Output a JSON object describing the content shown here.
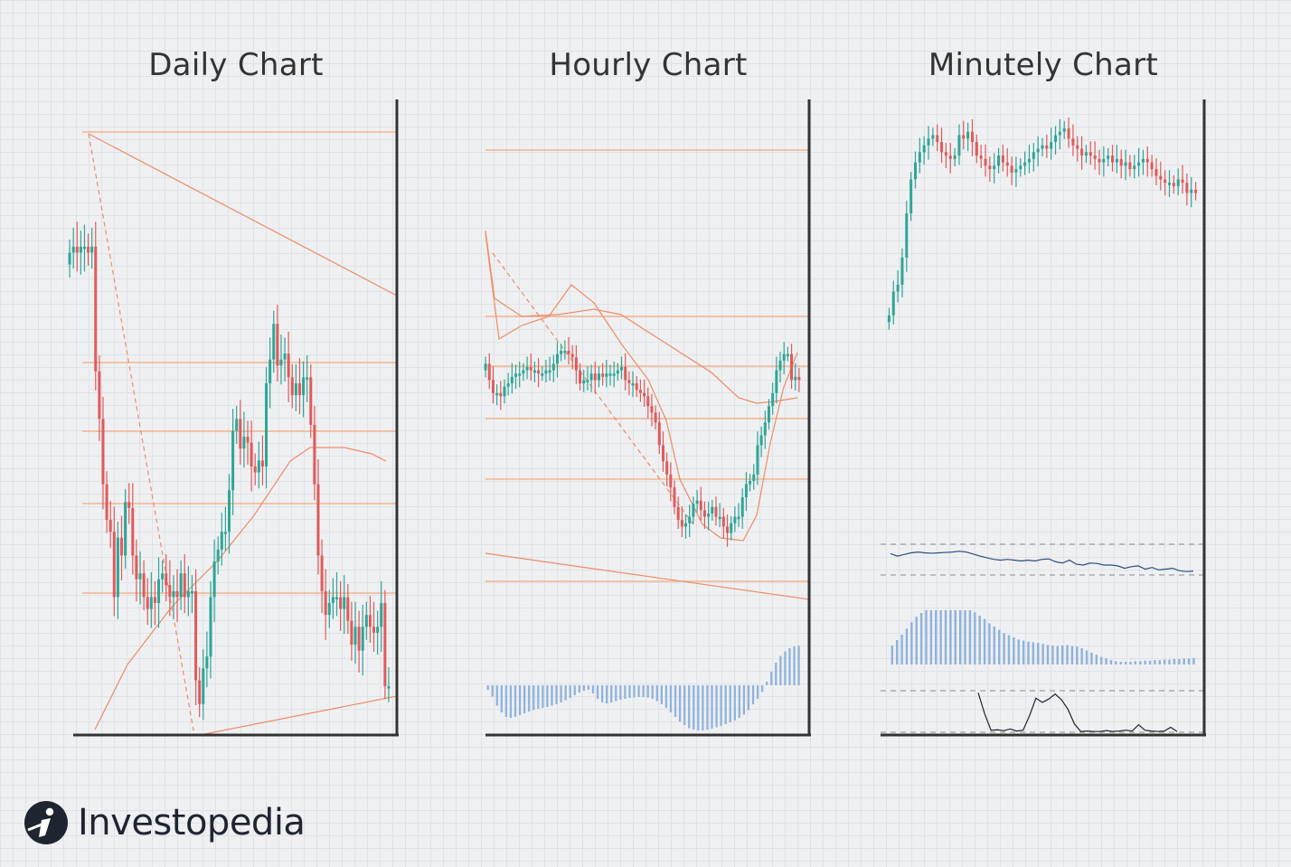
{
  "colors": {
    "up": "#2fa597",
    "down": "#e05a5a",
    "guide": "#f4a97c",
    "trend": "#ef8c66",
    "histogram": "#8fb2dc",
    "oscillator": "#2f4d7d",
    "axis": "#333333",
    "brand_dark": "#1f2530"
  },
  "titles": {
    "daily": "Daily Chart",
    "hourly": "Hourly Chart",
    "minutely": "Minutely Chart"
  },
  "brand": {
    "name": "Investopedia",
    "logo_icon": "investopedia-i-icon"
  },
  "chart_data": [
    {
      "type": "candlestick",
      "title": "Daily Chart",
      "ylim": [
        0,
        100
      ],
      "grid": true,
      "trendlines": true,
      "moving_average": true,
      "close": [
        80,
        81,
        80,
        81,
        81,
        80,
        81,
        60,
        52,
        41,
        35,
        33,
        22,
        32,
        29,
        38,
        37,
        29,
        25,
        26,
        22,
        20,
        22,
        21,
        25,
        26,
        24,
        22,
        23,
        22,
        26,
        22,
        23,
        23,
        8,
        4,
        10,
        12,
        22,
        28,
        30,
        33,
        33,
        40,
        50,
        52,
        47,
        49,
        48,
        44,
        43,
        45,
        44,
        58,
        62,
        68,
        61,
        62,
        63,
        59,
        56,
        58,
        56,
        59,
        59,
        51,
        41,
        29,
        23,
        19,
        21,
        22,
        22,
        20,
        22,
        18,
        14,
        17,
        13,
        17,
        19,
        17,
        16,
        17,
        21,
        7,
        7
      ]
    },
    {
      "type": "candlestick",
      "title": "Hourly Chart",
      "ylim": [
        0,
        100
      ],
      "grid": true,
      "trendlines": true,
      "moving_average": true,
      "indicator": "histogram",
      "close": [
        66,
        61,
        57,
        57,
        56,
        59,
        60,
        62,
        63,
        63,
        64,
        65,
        64,
        64,
        63,
        63,
        64,
        64,
        66,
        69,
        70,
        70,
        69,
        68,
        64,
        60,
        61,
        61,
        63,
        61,
        63,
        62,
        63,
        63,
        63,
        64,
        65,
        61,
        60,
        60,
        58,
        57,
        56,
        53,
        51,
        48,
        41,
        36,
        32,
        28,
        22,
        18,
        16,
        17,
        19,
        23,
        24,
        21,
        19,
        20,
        22,
        19,
        19,
        16,
        14,
        17,
        19,
        19,
        25,
        29,
        30,
        32,
        41,
        44,
        48,
        53,
        57,
        64,
        67,
        69,
        69,
        61,
        62,
        61
      ],
      "histogram": [
        -0.1,
        -0.25,
        -0.45,
        -0.6,
        -0.7,
        -0.72,
        -0.7,
        -0.66,
        -0.62,
        -0.58,
        -0.55,
        -0.52,
        -0.5,
        -0.48,
        -0.45,
        -0.42,
        -0.38,
        -0.33,
        -0.28,
        -0.22,
        -0.16,
        -0.12,
        -0.1,
        -0.18,
        -0.3,
        -0.38,
        -0.4,
        -0.38,
        -0.35,
        -0.32,
        -0.3,
        -0.28,
        -0.27,
        -0.26,
        -0.26,
        -0.27,
        -0.3,
        -0.35,
        -0.42,
        -0.5,
        -0.6,
        -0.7,
        -0.8,
        -0.88,
        -0.95,
        -0.98,
        -1.0,
        -1.0,
        -0.98,
        -0.96,
        -0.93,
        -0.9,
        -0.86,
        -0.82,
        -0.78,
        -0.72,
        -0.65,
        -0.55,
        -0.42,
        -0.3,
        -0.15,
        0.08,
        0.3,
        0.5,
        0.65,
        0.75,
        0.82,
        0.86,
        0.88
      ]
    },
    {
      "type": "candlestick",
      "title": "Minutely Chart",
      "ylim": [
        0,
        100
      ],
      "grid": true,
      "indicators": [
        "oscillator",
        "histogram",
        "stochastic"
      ],
      "close": [
        45,
        52,
        54,
        62,
        75,
        85,
        90,
        93,
        95,
        97,
        98,
        96,
        93,
        92,
        91,
        92,
        98,
        97,
        99,
        96,
        92,
        91,
        89,
        88,
        89,
        92,
        90,
        89,
        87,
        88,
        89,
        90,
        91,
        93,
        94,
        95,
        94,
        96,
        98,
        99,
        100,
        97,
        95,
        94,
        92,
        93,
        92,
        91,
        90,
        91,
        92,
        90,
        91,
        89,
        90,
        88,
        89,
        90,
        91,
        90,
        88,
        86,
        85,
        84,
        84,
        83,
        85,
        84,
        81,
        82,
        81
      ],
      "oscillator": [
        0.32,
        0.38,
        0.34,
        0.3,
        0.28,
        0.3,
        0.31,
        0.3,
        0.29,
        0.28,
        0.26,
        0.28,
        0.33,
        0.38,
        0.42,
        0.46,
        0.48,
        0.46,
        0.48,
        0.5,
        0.48,
        0.5,
        0.46,
        0.45,
        0.52,
        0.55,
        0.48,
        0.58,
        0.6,
        0.55,
        0.56,
        0.6,
        0.6,
        0.62,
        0.68,
        0.64,
        0.62,
        0.7,
        0.66,
        0.72,
        0.7,
        0.68,
        0.74,
        0.76,
        0.75
      ],
      "histogram": [
        0.35,
        0.45,
        0.55,
        0.66,
        0.78,
        0.88,
        0.95,
        1.0,
        1.0,
        1.0,
        1.0,
        1.0,
        1.0,
        1.0,
        1.0,
        1.0,
        1.0,
        0.96,
        0.9,
        0.84,
        0.76,
        0.7,
        0.64,
        0.58,
        0.54,
        0.5,
        0.46,
        0.44,
        0.42,
        0.41,
        0.4,
        0.38,
        0.36,
        0.35,
        0.34,
        0.35,
        0.36,
        0.34,
        0.33,
        0.3,
        0.26,
        0.22,
        0.18,
        0.14,
        0.11,
        0.08,
        0.06,
        0.05,
        0.05,
        0.05,
        0.06,
        0.06,
        0.07,
        0.07,
        0.08,
        0.08,
        0.09,
        0.09,
        0.1,
        0.1,
        0.11,
        0.11,
        0.12
      ],
      "stochastic": [
        0.95,
        0.45,
        0.05,
        0.06,
        0.04,
        0.08,
        0.03,
        0.05,
        0.4,
        0.82,
        0.72,
        0.8,
        0.92,
        0.78,
        0.55,
        0.2,
        0.02,
        0.03,
        0.02,
        0.02,
        0.04,
        0.02,
        0.03,
        0.05,
        0.03,
        0.18,
        0.05,
        0.03,
        0.02,
        0.03,
        0.12,
        0.02
      ]
    }
  ]
}
